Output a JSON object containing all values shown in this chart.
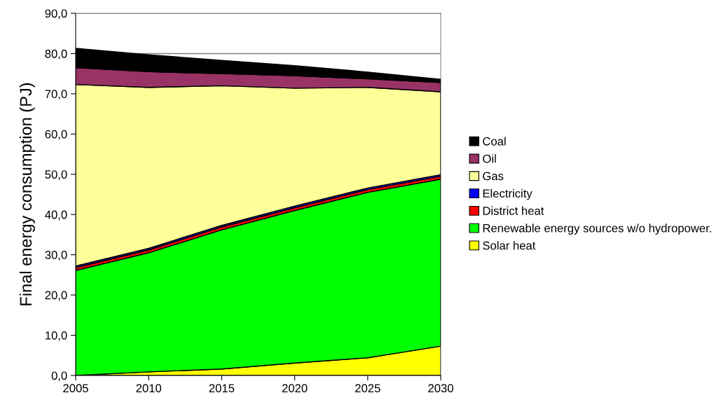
{
  "chart_data": {
    "type": "area",
    "stacked": true,
    "ylabel": "Final energy consumption (PJ)",
    "x": [
      2005,
      2010,
      2015,
      2020,
      2025,
      2030
    ],
    "series": [
      {
        "name": "Solar heat",
        "color": "#ffff00",
        "values": [
          0,
          0.9,
          1.6,
          3.1,
          4.4,
          7.3
        ]
      },
      {
        "name": "Renewable energy sources w/o hydropower.",
        "color": "#00ff00",
        "values": [
          26.1,
          29.6,
          34.6,
          37.9,
          41.1,
          41.5
        ]
      },
      {
        "name": "District heat",
        "color": "#ff0000",
        "values": [
          0.7,
          0.7,
          0.7,
          0.7,
          0.7,
          0.7
        ]
      },
      {
        "name": "Electricity",
        "color": "#0000ff",
        "values": [
          0.4,
          0.4,
          0.4,
          0.4,
          0.4,
          0.4
        ]
      },
      {
        "name": "Gas",
        "color": "#ffff99",
        "values": [
          45.1,
          40.0,
          34.7,
          29.3,
          25.0,
          20.6
        ]
      },
      {
        "name": "Oil",
        "color": "#993366",
        "values": [
          4.2,
          3.9,
          3.0,
          3.1,
          2.1,
          2.3
        ]
      },
      {
        "name": "Coal",
        "color": "#000000",
        "values": [
          4.8,
          4.2,
          3.3,
          2.5,
          1.7,
          0.8
        ]
      }
    ],
    "xlim": [
      2005,
      2030
    ],
    "xticks": [
      2005,
      2010,
      2015,
      2020,
      2025,
      2030
    ],
    "ylim": [
      0,
      90
    ],
    "yticks": [
      {
        "value": 0,
        "label": "0,0"
      },
      {
        "value": 10,
        "label": "10,0"
      },
      {
        "value": 20,
        "label": "20,0"
      },
      {
        "value": 30,
        "label": "30,0"
      },
      {
        "value": 40,
        "label": "40,0"
      },
      {
        "value": 50,
        "label": "50,0"
      },
      {
        "value": 60,
        "label": "60,0"
      },
      {
        "value": 70,
        "label": "70,0"
      },
      {
        "value": 80,
        "label": "80,0"
      },
      {
        "value": 90,
        "label": "90,0"
      }
    ],
    "grid": "y",
    "legend": "right"
  }
}
